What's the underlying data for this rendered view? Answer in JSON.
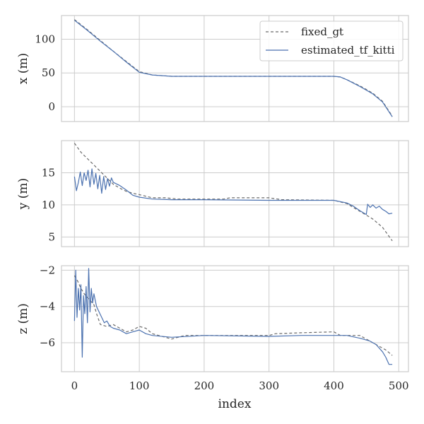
{
  "chart_data": {
    "type": "line",
    "xlabel": "index",
    "xlim": [
      -20,
      515
    ],
    "xticks": [
      0,
      100,
      200,
      300,
      400,
      500
    ],
    "legend": {
      "placement": "top-right",
      "entries": [
        {
          "name": "fixed_gt",
          "style": "dashed",
          "color": "#6b6b6b"
        },
        {
          "name": "estimated_tf_kitti",
          "style": "solid",
          "color": "#4c72b0"
        }
      ]
    },
    "panels": [
      {
        "ylabel": "x (m)",
        "ylim": [
          -22,
          135
        ],
        "yticks": [
          0,
          50,
          100
        ],
        "series": [
          {
            "name": "fixed_gt",
            "points": [
              [
                0,
                129
              ],
              [
                20,
                114
              ],
              [
                40,
                98
              ],
              [
                60,
                82
              ],
              [
                80,
                67
              ],
              [
                100,
                52
              ],
              [
                120,
                47
              ],
              [
                150,
                45
              ],
              [
                200,
                45
              ],
              [
                300,
                45
              ],
              [
                400,
                45
              ],
              [
                410,
                44
              ],
              [
                420,
                40
              ],
              [
                440,
                31
              ],
              [
                460,
                20
              ],
              [
                475,
                8
              ],
              [
                490,
                -14
              ]
            ]
          },
          {
            "name": "estimated_tf_kitti",
            "points": [
              [
                0,
                128
              ],
              [
                20,
                113
              ],
              [
                40,
                97
              ],
              [
                60,
                82
              ],
              [
                80,
                66
              ],
              [
                100,
                51
              ],
              [
                120,
                47
              ],
              [
                150,
                45
              ],
              [
                200,
                45
              ],
              [
                300,
                45
              ],
              [
                400,
                45
              ],
              [
                410,
                44
              ],
              [
                420,
                40
              ],
              [
                440,
                30
              ],
              [
                460,
                19
              ],
              [
                475,
                7
              ],
              [
                490,
                -15
              ]
            ]
          }
        ]
      },
      {
        "ylabel": "y (m)",
        "ylim": [
          3.5,
          20
        ],
        "yticks": [
          5,
          10,
          15
        ],
        "series": [
          {
            "name": "fixed_gt",
            "points": [
              [
                0,
                19.6
              ],
              [
                10,
                18.2
              ],
              [
                20,
                17.2
              ],
              [
                30,
                16.2
              ],
              [
                40,
                15.2
              ],
              [
                50,
                14.2
              ],
              [
                60,
                13.2
              ],
              [
                70,
                12.6
              ],
              [
                80,
                12.1
              ],
              [
                90,
                11.8
              ],
              [
                100,
                11.6
              ],
              [
                120,
                11.1
              ],
              [
                140,
                11.1
              ],
              [
                160,
                10.9
              ],
              [
                200,
                10.9
              ],
              [
                230,
                10.9
              ],
              [
                240,
                11.1
              ],
              [
                300,
                11.1
              ],
              [
                320,
                10.8
              ],
              [
                400,
                10.7
              ],
              [
                420,
                10.2
              ],
              [
                440,
                9.0
              ],
              [
                460,
                7.8
              ],
              [
                475,
                6.5
              ],
              [
                490,
                4.4
              ]
            ]
          },
          {
            "name": "estimated_tf_kitti",
            "points": [
              [
                0,
                14.4
              ],
              [
                3,
                12.2
              ],
              [
                6,
                13.5
              ],
              [
                9,
                15.1
              ],
              [
                12,
                13.0
              ],
              [
                15,
                15.0
              ],
              [
                18,
                13.8
              ],
              [
                21,
                15.4
              ],
              [
                24,
                12.8
              ],
              [
                27,
                15.6
              ],
              [
                30,
                13.2
              ],
              [
                33,
                14.9
              ],
              [
                36,
                12.5
              ],
              [
                39,
                14.6
              ],
              [
                42,
                11.8
              ],
              [
                45,
                14.4
              ],
              [
                48,
                12.4
              ],
              [
                51,
                14.1
              ],
              [
                54,
                12.9
              ],
              [
                57,
                14.2
              ],
              [
                60,
                13.5
              ],
              [
                70,
                13.0
              ],
              [
                80,
                12.3
              ],
              [
                90,
                11.5
              ],
              [
                100,
                11.2
              ],
              [
                120,
                10.9
              ],
              [
                150,
                10.8
              ],
              [
                200,
                10.8
              ],
              [
                300,
                10.7
              ],
              [
                350,
                10.7
              ],
              [
                400,
                10.7
              ],
              [
                420,
                10.3
              ],
              [
                430,
                9.8
              ],
              [
                440,
                9.1
              ],
              [
                450,
                8.5
              ],
              [
                452,
                10.1
              ],
              [
                456,
                9.6
              ],
              [
                460,
                10.0
              ],
              [
                465,
                9.5
              ],
              [
                470,
                9.8
              ],
              [
                475,
                9.3
              ],
              [
                480,
                9.0
              ],
              [
                485,
                8.6
              ],
              [
                490,
                8.7
              ]
            ]
          }
        ]
      },
      {
        "ylabel": "z (m)",
        "ylim": [
          -7.6,
          -1.75
        ],
        "yticks": [
          -6,
          -4,
          -2
        ],
        "series": [
          {
            "name": "fixed_gt",
            "points": [
              [
                0,
                -2.3
              ],
              [
                5,
                -2.6
              ],
              [
                10,
                -3.0
              ],
              [
                15,
                -3.3
              ],
              [
                20,
                -3.5
              ],
              [
                25,
                -3.7
              ],
              [
                30,
                -3.9
              ],
              [
                35,
                -4.5
              ],
              [
                40,
                -5.0
              ],
              [
                50,
                -5.1
              ],
              [
                60,
                -5.0
              ],
              [
                70,
                -5.2
              ],
              [
                80,
                -5.4
              ],
              [
                90,
                -5.3
              ],
              [
                100,
                -5.1
              ],
              [
                110,
                -5.2
              ],
              [
                120,
                -5.5
              ],
              [
                150,
                -5.8
              ],
              [
                170,
                -5.6
              ],
              [
                200,
                -5.6
              ],
              [
                250,
                -5.6
              ],
              [
                300,
                -5.6
              ],
              [
                310,
                -5.5
              ],
              [
                350,
                -5.45
              ],
              [
                400,
                -5.4
              ],
              [
                410,
                -5.6
              ],
              [
                440,
                -5.6
              ],
              [
                450,
                -5.8
              ],
              [
                460,
                -6.0
              ],
              [
                470,
                -6.2
              ],
              [
                480,
                -6.4
              ],
              [
                490,
                -6.7
              ]
            ]
          },
          {
            "name": "estimated_tf_kitti",
            "points": [
              [
                0,
                -4.8
              ],
              [
                2,
                -2.0
              ],
              [
                4,
                -4.6
              ],
              [
                6,
                -3.0
              ],
              [
                8,
                -4.2
              ],
              [
                10,
                -2.8
              ],
              [
                12,
                -6.8
              ],
              [
                14,
                -3.4
              ],
              [
                16,
                -4.4
              ],
              [
                18,
                -2.9
              ],
              [
                20,
                -4.9
              ],
              [
                22,
                -1.9
              ],
              [
                24,
                -4.3
              ],
              [
                26,
                -3.0
              ],
              [
                28,
                -3.8
              ],
              [
                30,
                -3.3
              ],
              [
                34,
                -4.0
              ],
              [
                38,
                -4.3
              ],
              [
                42,
                -4.6
              ],
              [
                46,
                -4.9
              ],
              [
                50,
                -4.8
              ],
              [
                55,
                -5.1
              ],
              [
                60,
                -5.2
              ],
              [
                70,
                -5.3
              ],
              [
                80,
                -5.5
              ],
              [
                90,
                -5.4
              ],
              [
                100,
                -5.3
              ],
              [
                110,
                -5.5
              ],
              [
                120,
                -5.6
              ],
              [
                150,
                -5.7
              ],
              [
                200,
                -5.6
              ],
              [
                300,
                -5.65
              ],
              [
                350,
                -5.6
              ],
              [
                400,
                -5.6
              ],
              [
                420,
                -5.6
              ],
              [
                440,
                -5.75
              ],
              [
                455,
                -5.9
              ],
              [
                465,
                -6.1
              ],
              [
                475,
                -6.5
              ],
              [
                480,
                -6.8
              ],
              [
                485,
                -7.2
              ],
              [
                490,
                -7.2
              ]
            ]
          }
        ]
      }
    ]
  }
}
